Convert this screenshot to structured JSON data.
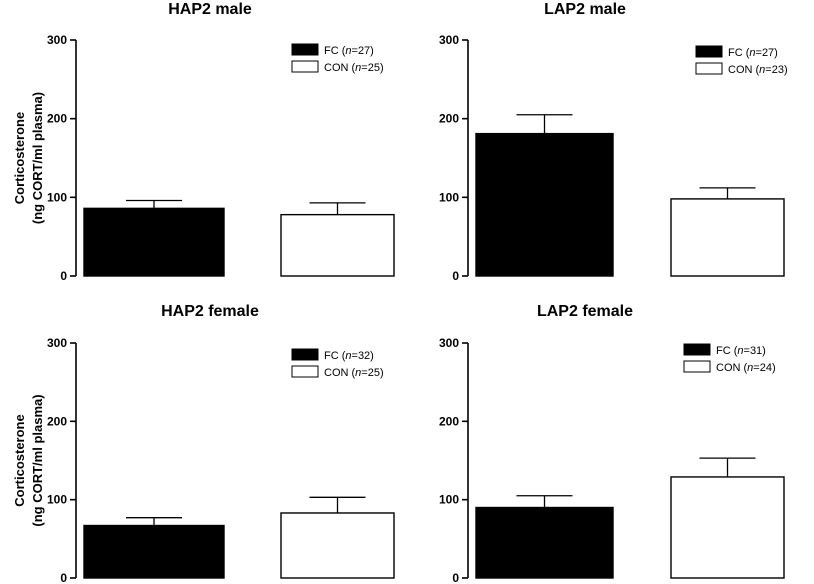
{
  "chart_data": [
    {
      "type": "bar",
      "title": "HAP2 male",
      "ylabel": [
        "Corticosterone",
        "(ng CORT/ml plasma)"
      ],
      "ylim": [
        0,
        300
      ],
      "yticks": [
        0,
        100,
        200,
        300
      ],
      "categories": [
        "FC",
        "CON"
      ],
      "values": [
        86,
        78
      ],
      "errors": [
        10,
        15
      ],
      "colors": [
        "#000000",
        "#ffffff"
      ],
      "legend": [
        {
          "group": "FC",
          "n_prefix": "n",
          "n_value": "=27"
        },
        {
          "group": "CON",
          "n_prefix": "n",
          "n_value": "=25"
        }
      ],
      "legend_position": "top-right"
    },
    {
      "type": "bar",
      "title": "LAP2 male",
      "ylabel": [
        "",
        ""
      ],
      "ylim": [
        0,
        300
      ],
      "yticks": [
        0,
        100,
        200,
        300
      ],
      "categories": [
        "FC",
        "CON"
      ],
      "values": [
        181,
        98
      ],
      "errors": [
        24,
        14
      ],
      "colors": [
        "#000000",
        "#ffffff"
      ],
      "legend": [
        {
          "group": "FC",
          "n_prefix": "n",
          "n_value": "=27"
        },
        {
          "group": "CON",
          "n_prefix": "n",
          "n_value": "=23"
        }
      ],
      "legend_position": "top-right"
    },
    {
      "type": "bar",
      "title": "HAP2 female",
      "ylabel": [
        "Corticosterone",
        "(ng CORT/ml plasma)"
      ],
      "ylim": [
        0,
        300
      ],
      "yticks": [
        0,
        100,
        200,
        300
      ],
      "categories": [
        "FC",
        "CON"
      ],
      "values": [
        67,
        83
      ],
      "errors": [
        10,
        20
      ],
      "colors": [
        "#000000",
        "#ffffff"
      ],
      "legend": [
        {
          "group": "FC",
          "n_prefix": "n",
          "n_value": "=32"
        },
        {
          "group": "CON",
          "n_prefix": "n",
          "n_value": "=25"
        }
      ],
      "legend_position": "top-right"
    },
    {
      "type": "bar",
      "title": "LAP2 female",
      "ylabel": [
        "",
        ""
      ],
      "ylim": [
        0,
        300
      ],
      "yticks": [
        0,
        100,
        200,
        300
      ],
      "categories": [
        "FC",
        "CON"
      ],
      "values": [
        90,
        129
      ],
      "errors": [
        15,
        24
      ],
      "colors": [
        "#000000",
        "#ffffff"
      ],
      "legend": [
        {
          "group": "FC",
          "n_prefix": "n",
          "n_value": "=31"
        },
        {
          "group": "CON",
          "n_prefix": "n",
          "n_value": "=24"
        }
      ],
      "legend_position": "top-right"
    }
  ]
}
